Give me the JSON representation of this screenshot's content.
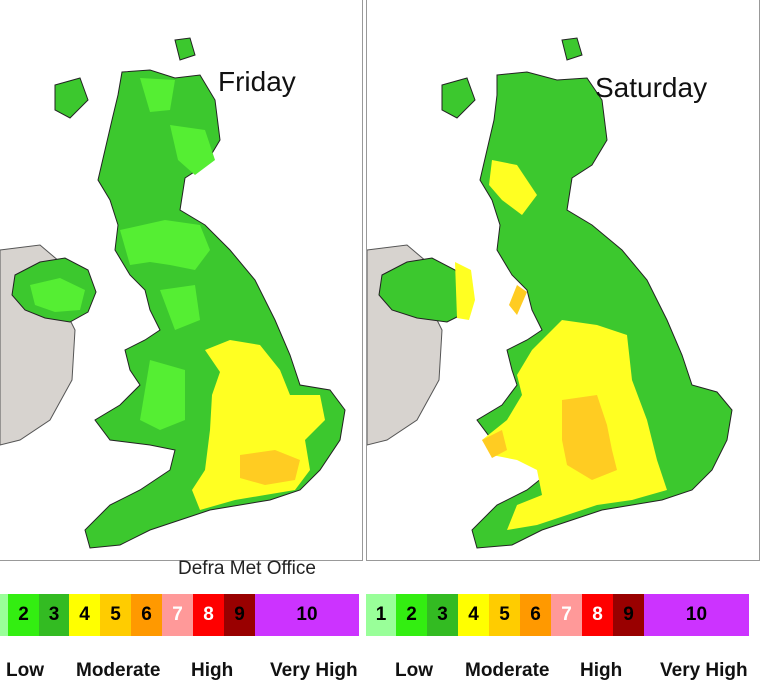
{
  "maps": [
    {
      "title": "Friday"
    },
    {
      "title": "Saturday"
    }
  ],
  "credit": "Defra Met Office",
  "scale": {
    "left": [
      {
        "label": "2",
        "color": "#33ee11",
        "text_color": "#000000"
      },
      {
        "label": "3",
        "color": "#33bb22",
        "text_color": "#000000"
      },
      {
        "label": "4",
        "color": "#ffff00",
        "text_color": "#000000"
      },
      {
        "label": "5",
        "color": "#ffcc00",
        "text_color": "#000000"
      },
      {
        "label": "6",
        "color": "#ff9900",
        "text_color": "#000000"
      },
      {
        "label": "7",
        "color": "#ff9999",
        "text_color": "#ffffff"
      },
      {
        "label": "8",
        "color": "#ff0000",
        "text_color": "#ffffff"
      },
      {
        "label": "9",
        "color": "#990000",
        "text_color": "#000000"
      },
      {
        "label": "10",
        "color": "#cc33ff",
        "text_color": "#000000"
      }
    ],
    "right": [
      {
        "label": "1",
        "color": "#99ff99",
        "text_color": "#000000"
      },
      {
        "label": "2",
        "color": "#33ee11",
        "text_color": "#000000"
      },
      {
        "label": "3",
        "color": "#33bb22",
        "text_color": "#000000"
      },
      {
        "label": "4",
        "color": "#ffff00",
        "text_color": "#000000"
      },
      {
        "label": "5",
        "color": "#ffcc00",
        "text_color": "#000000"
      },
      {
        "label": "6",
        "color": "#ff9900",
        "text_color": "#000000"
      },
      {
        "label": "7",
        "color": "#ff9999",
        "text_color": "#ffffff"
      },
      {
        "label": "8",
        "color": "#ff0000",
        "text_color": "#ffffff"
      },
      {
        "label": "9",
        "color": "#990000",
        "text_color": "#000000"
      },
      {
        "label": "10",
        "color": "#cc33ff",
        "text_color": "#000000"
      }
    ]
  },
  "bands": [
    "Low",
    "Moderate",
    "High",
    "Very High"
  ]
}
